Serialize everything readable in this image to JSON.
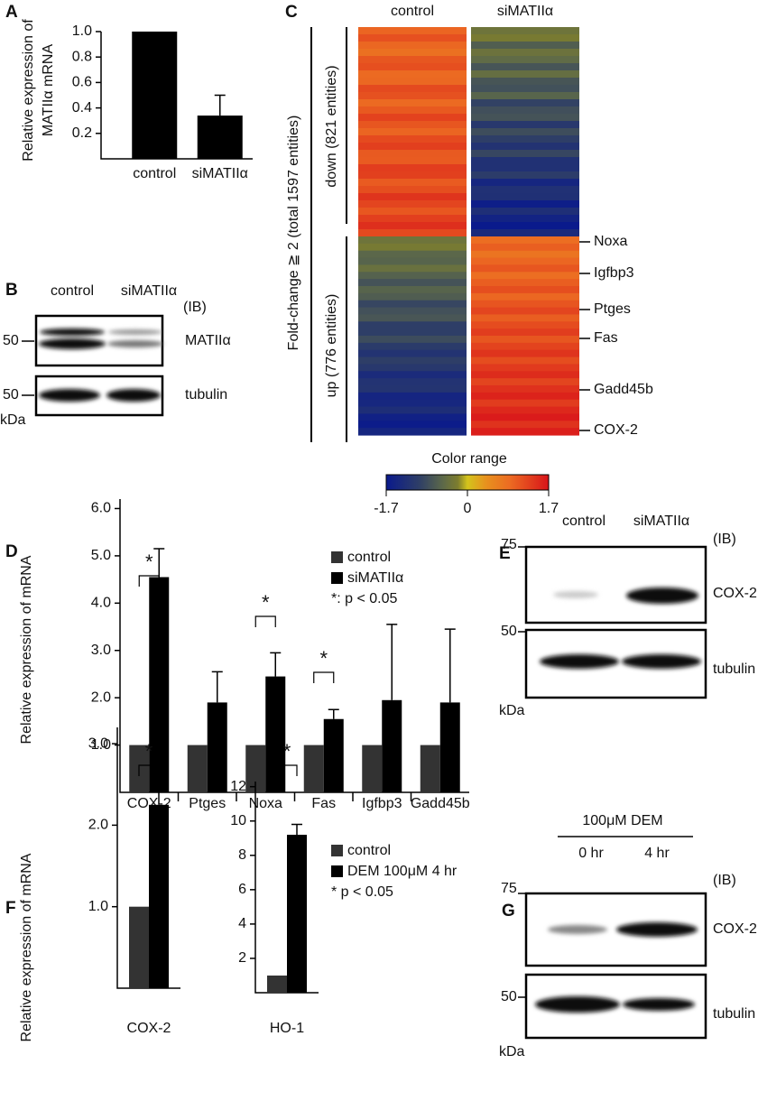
{
  "panels": [
    "A",
    "B",
    "C",
    "D",
    "E",
    "F",
    "G"
  ],
  "chart_data": [
    {
      "type": "bar",
      "ylabel": [
        "Relative expression of",
        "MATIIα mRNA"
      ],
      "categories": [
        "control",
        "siMATIIα"
      ],
      "values": [
        1,
        0.34
      ],
      "errors": [
        null,
        0.16
      ],
      "color": "#000000",
      "ylim": [
        0,
        1
      ],
      "yticks": [
        0.2,
        0.4,
        0.6,
        0.8,
        {
          "value": 1,
          "label": "1.0"
        }
      ]
    },
    {
      "type": "bar",
      "ylabel": "Relative expression of  mRNA",
      "categories": [
        "COX-2",
        "Ptges",
        "Noxa",
        "Fas",
        "Igfbp3",
        "Gadd45b"
      ],
      "series": [
        {
          "name": "control",
          "color": "#333333",
          "values": [
            1,
            1,
            1,
            1,
            1,
            1
          ]
        },
        {
          "name": "siMATIIα",
          "color": "#000000",
          "values": [
            4.55,
            1.9,
            2.45,
            1.55,
            1.95,
            1.9
          ],
          "errors": [
            0.6,
            0.65,
            0.5,
            0.2,
            1.6,
            1.55
          ]
        }
      ],
      "significance": [
        "*",
        null,
        "*",
        "*",
        null,
        null
      ],
      "note": "*: p < 0.05",
      "ylim": [
        0,
        6.2
      ],
      "yticks": [
        {
          "value": 1,
          "label": "1.0"
        },
        {
          "value": 2,
          "label": "2.0"
        },
        {
          "value": 3,
          "label": "3.0"
        },
        {
          "value": 4,
          "label": "4.0"
        },
        {
          "value": 5,
          "label": "5.0"
        },
        {
          "value": 6,
          "label": "6.0"
        }
      ]
    },
    {
      "type": "bar",
      "ylabel": "Relative expression of  mRNA",
      "categories": [
        "COX-2"
      ],
      "series": [
        {
          "color": "#333333",
          "values": [
            1
          ]
        },
        {
          "color": "#000000",
          "values": [
            2.25
          ],
          "errors": [
            0.55
          ]
        }
      ],
      "significance": [
        "*"
      ],
      "ylim": [
        0,
        3.2
      ],
      "yticks": [
        {
          "value": 1,
          "label": "1.0"
        },
        {
          "value": 2,
          "label": "2.0"
        },
        {
          "value": 3,
          "label": "3.0"
        }
      ]
    },
    {
      "type": "bar",
      "categories": [
        "HO-1"
      ],
      "series": [
        {
          "name": "control",
          "color": "#333333",
          "values": [
            1
          ]
        },
        {
          "name": "DEM 100μM 4 hr",
          "color": "#000000",
          "values": [
            9.2
          ],
          "errors": [
            0.6
          ]
        }
      ],
      "significance": [
        "*"
      ],
      "note": "*  p < 0.05",
      "ylim": [
        0,
        12.3
      ],
      "yticks": [
        2,
        4,
        6,
        8,
        10,
        12
      ]
    }
  ],
  "heatmap": {
    "columns": [
      "control",
      "siMATIIα"
    ],
    "group_label": "Fold-change ≧ 2 (total 1597 entities)",
    "groups": [
      "down (821 entities)",
      "up (776 entities)"
    ],
    "genes": [
      "Noxa",
      "Igfbp3",
      "Ptges",
      "Fas",
      "Gadd45b",
      "COX-2"
    ],
    "colorbar": {
      "title": "Color range",
      "lim": [
        -1.7,
        1.7
      ],
      "ticks": [
        -1.7,
        0,
        1.7
      ]
    }
  },
  "blot_B": {
    "lanes": [
      "control",
      "siMATIIα"
    ],
    "tag": "(IB)",
    "rows": [
      "MATIIα",
      "tubulin"
    ],
    "markers": [
      50,
      50
    ],
    "unit": "kDa"
  },
  "blot_E": {
    "lanes": [
      "control",
      "siMATIIα"
    ],
    "tag": "(IB)",
    "rows": [
      "COX-2",
      "tubulin"
    ],
    "markers": [
      75,
      50
    ],
    "unit": "kDa"
  },
  "blot_G": {
    "treatment": "100μM DEM",
    "lanes": [
      "0 hr",
      "4 hr"
    ],
    "tag": "(IB)",
    "rows": [
      "COX-2",
      "tubulin"
    ],
    "markers": [
      75,
      50
    ],
    "unit": "kDa"
  }
}
